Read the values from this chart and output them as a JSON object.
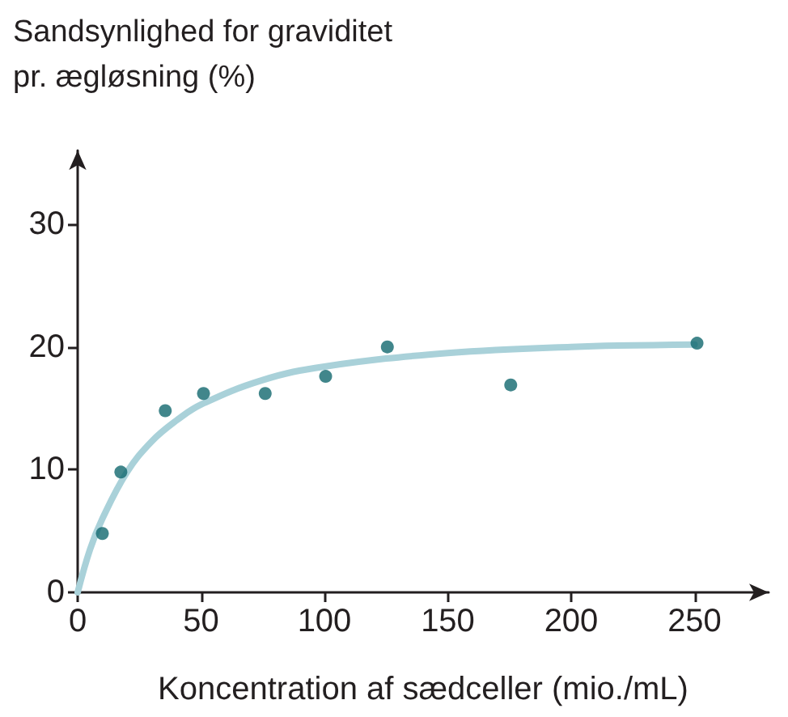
{
  "chart_data": {
    "type": "scatter",
    "xlabel": "Koncentration af sædceller (mio./mL)",
    "ylabel": "Sandsynlighed for graviditet pr. ægløsning (%)",
    "xlim": [
      0,
      280
    ],
    "ylim": [
      0,
      36
    ],
    "xticks": [
      0,
      50,
      100,
      150,
      200,
      250
    ],
    "yticks": [
      0,
      10,
      20,
      30
    ],
    "grid": false,
    "marker": "circle",
    "series": [
      {
        "color": "#11686e",
        "x": [
          10,
          17.5,
          35.5,
          51,
          76,
          100.5,
          125.5,
          175.5,
          251
        ],
        "values": [
          4.8,
          9.8,
          14.8,
          16.2,
          16.2,
          17.6,
          20,
          16.9,
          20.3
        ]
      },
      {
        "type": "line",
        "color": "#a9d1d9",
        "line_style": "solid",
        "marker": "none",
        "x": [
          0,
          5,
          10,
          20,
          30,
          40,
          50,
          75,
          100,
          150,
          200,
          250
        ],
        "values": [
          0,
          3.5,
          6,
          9.8,
          12.3,
          14,
          15.3,
          17.3,
          18.4,
          19.5,
          20,
          20.2
        ]
      }
    ]
  }
}
